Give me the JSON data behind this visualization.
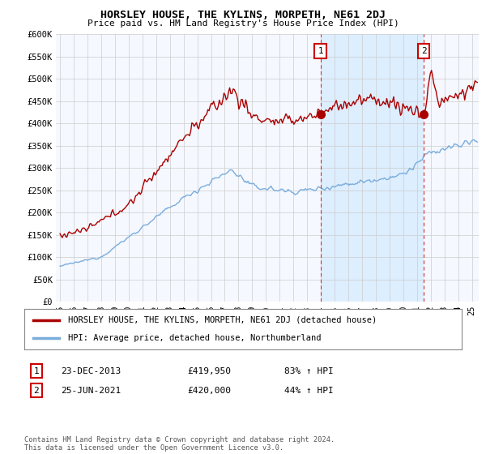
{
  "title": "HORSLEY HOUSE, THE KYLINS, MORPETH, NE61 2DJ",
  "subtitle": "Price paid vs. HM Land Registry's House Price Index (HPI)",
  "ylim": [
    0,
    600000
  ],
  "yticks": [
    0,
    50000,
    100000,
    150000,
    200000,
    250000,
    300000,
    350000,
    400000,
    450000,
    500000,
    550000,
    600000
  ],
  "ytick_labels": [
    "£0",
    "£50K",
    "£100K",
    "£150K",
    "£200K",
    "£250K",
    "£300K",
    "£350K",
    "£400K",
    "£450K",
    "£500K",
    "£550K",
    "£600K"
  ],
  "xlim_start": 1994.7,
  "xlim_end": 2025.5,
  "house_color": "#aa0000",
  "hpi_color": "#7aaddc",
  "dashed_line_color": "#cc3333",
  "shaded_region_color": "#ddeeff",
  "marker1_date": 2013.97,
  "marker2_date": 2021.49,
  "marker1_price": 419950,
  "marker2_price": 420000,
  "legend_house": "HORSLEY HOUSE, THE KYLINS, MORPETH, NE61 2DJ (detached house)",
  "legend_hpi": "HPI: Average price, detached house, Northumberland",
  "table_row1": [
    "1",
    "23-DEC-2013",
    "£419,950",
    "83% ↑ HPI"
  ],
  "table_row2": [
    "2",
    "25-JUN-2021",
    "£420,000",
    "44% ↑ HPI"
  ],
  "footnote": "Contains HM Land Registry data © Crown copyright and database right 2024.\nThis data is licensed under the Open Government Licence v3.0.",
  "background_color": "#ffffff",
  "plot_bg_color": "#f5f8ff",
  "grid_color": "#cccccc"
}
